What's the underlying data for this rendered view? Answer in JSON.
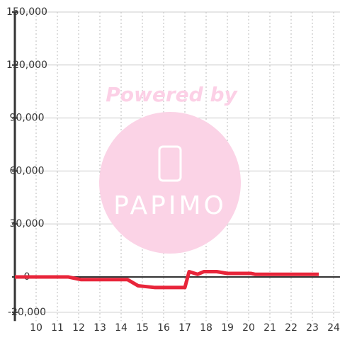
{
  "chart_data": {
    "type": "line",
    "watermark": {
      "top": "Powered by",
      "brand": "PAPIMO"
    },
    "x": [
      9,
      11.5,
      12.1,
      14.3,
      14.8,
      15.6,
      17.0,
      17.2,
      17.6,
      17.9,
      18.5,
      19.0,
      20.1,
      20.3,
      23.3
    ],
    "series": [
      {
        "color": "#e8253a",
        "values": [
          0,
          0,
          -1500,
          -1500,
          -5000,
          -6000,
          -6000,
          3000,
          1500,
          3000,
          3000,
          2000,
          2000,
          1500,
          1500
        ]
      }
    ],
    "xlim": [
      9,
      24.3
    ],
    "xticks": [
      10,
      11,
      12,
      13,
      14,
      15,
      16,
      17,
      18,
      19,
      20,
      21,
      22,
      23,
      24
    ],
    "ylim": [
      -25000,
      150000
    ],
    "yticks": [
      {
        "value": -20000,
        "label": "-20,000"
      },
      0,
      {
        "value": 30000,
        "label": "30,000"
      },
      {
        "value": 60000,
        "label": "60,000"
      },
      {
        "value": 90000,
        "label": "90,000"
      },
      {
        "value": 120000,
        "label": "120,000"
      },
      {
        "value": 150000,
        "label": "150,000"
      }
    ],
    "grid": true
  }
}
